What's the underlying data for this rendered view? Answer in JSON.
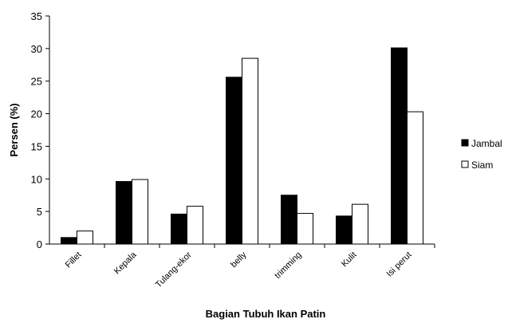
{
  "chart_data": {
    "type": "bar",
    "title": "",
    "xlabel": "Bagian Tubuh Ikan Patin",
    "ylabel": "Persen (%)",
    "ylim": [
      0,
      35
    ],
    "yticks": [
      0,
      5,
      10,
      15,
      20,
      25,
      30,
      35
    ],
    "categories": [
      "Fillet",
      "Kepala",
      "Tulang-ekor",
      "belly",
      "trimming",
      "Kulit",
      "Isi perut"
    ],
    "series": [
      {
        "name": "Jambal",
        "color": "#000000",
        "values": [
          1.0,
          9.6,
          4.6,
          25.6,
          7.5,
          4.3,
          30.1
        ]
      },
      {
        "name": "Siam",
        "color": "#ffffff",
        "values": [
          2.0,
          9.9,
          5.8,
          28.5,
          4.7,
          6.1,
          20.3
        ]
      }
    ],
    "grid": false,
    "legend_position": "right"
  }
}
